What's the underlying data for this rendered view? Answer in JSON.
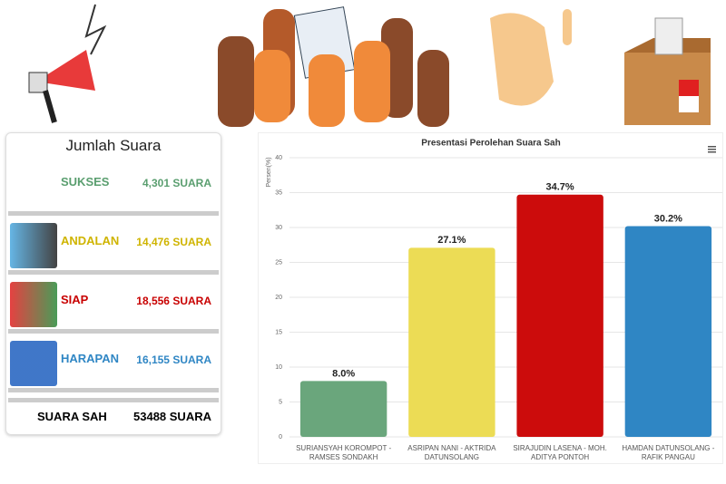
{
  "panel": {
    "title": "Jumlah Suara",
    "rows": [
      {
        "name": "SUKSES",
        "votes": "4,301 SUARA",
        "color": "#5a9e6f"
      },
      {
        "name": "ANDALAN",
        "votes": "14,476 SUARA",
        "color": "#cfb400"
      },
      {
        "name": "SIAP",
        "votes": "18,556 SUARA",
        "color": "#c80000"
      },
      {
        "name": "HARAPAN",
        "votes": "16,155 SUARA",
        "color": "#2f86c4"
      }
    ],
    "total_label": "SUARA SAH",
    "total_value": "53488 SUARA"
  },
  "chart_data": {
    "type": "bar",
    "title": "Presentasi Perolehan Suara Sah",
    "y_label": "Persen(%)",
    "categories": [
      "SURIANSYAH KOROMPOT - RAMSES SONDAKH",
      "ASRIPAN NANI - AKTRIDA DATUNSOLANG",
      "SIRAJUDIN LASENA - MOH. ADITYA PONTOH",
      "HAMDAN DATUNSOLANG - RAFIK PANGAU"
    ],
    "values": [
      8.0,
      27.1,
      34.7,
      30.2
    ],
    "value_labels": [
      "8.0%",
      "27.1%",
      "34.7%",
      "30.2%"
    ],
    "colors": [
      "#6aa67c",
      "#ecdc55",
      "#cc0c0c",
      "#2f86c4"
    ],
    "ylim": [
      0,
      40
    ],
    "yticks": [
      0,
      5,
      10,
      15,
      20,
      25,
      30,
      35,
      40
    ],
    "grid": true
  }
}
